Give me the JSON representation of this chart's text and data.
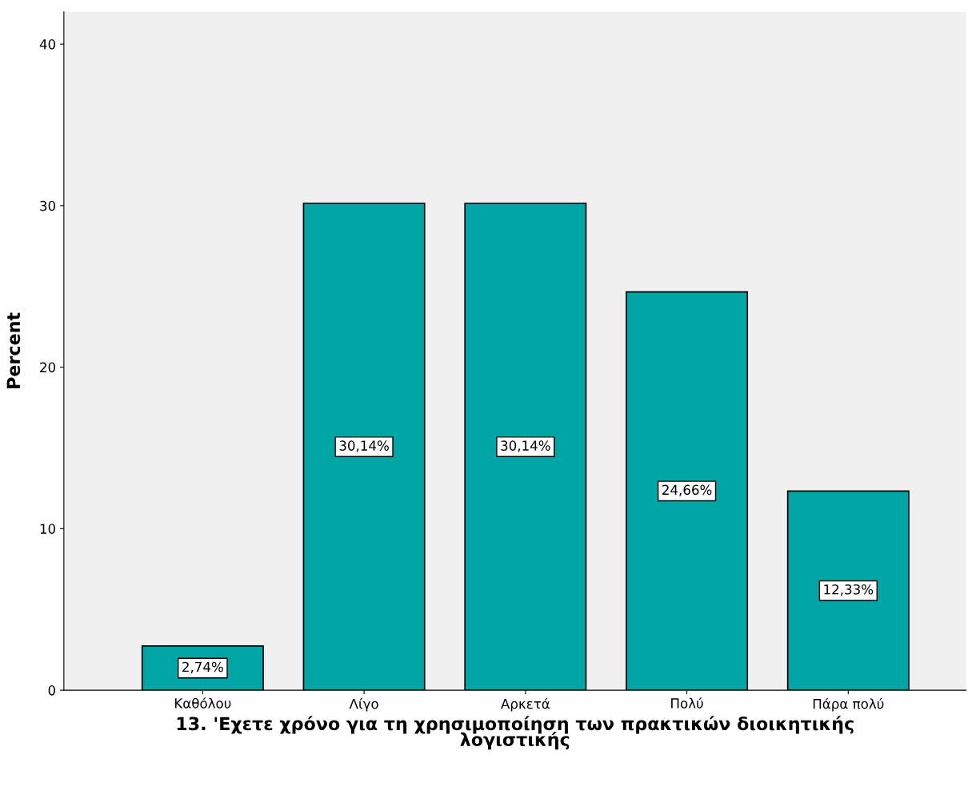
{
  "chart_data": {
    "type": "bar",
    "categories": [
      "Καθόλου",
      "Λίγο",
      "Αρκετά",
      "Πολύ",
      "Πάρα πολύ"
    ],
    "values": [
      2.74,
      30.14,
      30.14,
      24.66,
      12.33
    ],
    "value_labels": [
      "2,74%",
      "30,14%",
      "30,14%",
      "24,66%",
      "12,33%"
    ],
    "color": "#00a5a5",
    "xlabel": "13. 'Εχετε χρόνο για τη χρησιμοποίηση των πρακτικών διοικητικής λογιστικής",
    "ylabel": "Percent",
    "ylim": [
      0,
      42
    ],
    "yticks": [
      0,
      10,
      20,
      30,
      40
    ],
    "grid": false,
    "legend": false
  }
}
